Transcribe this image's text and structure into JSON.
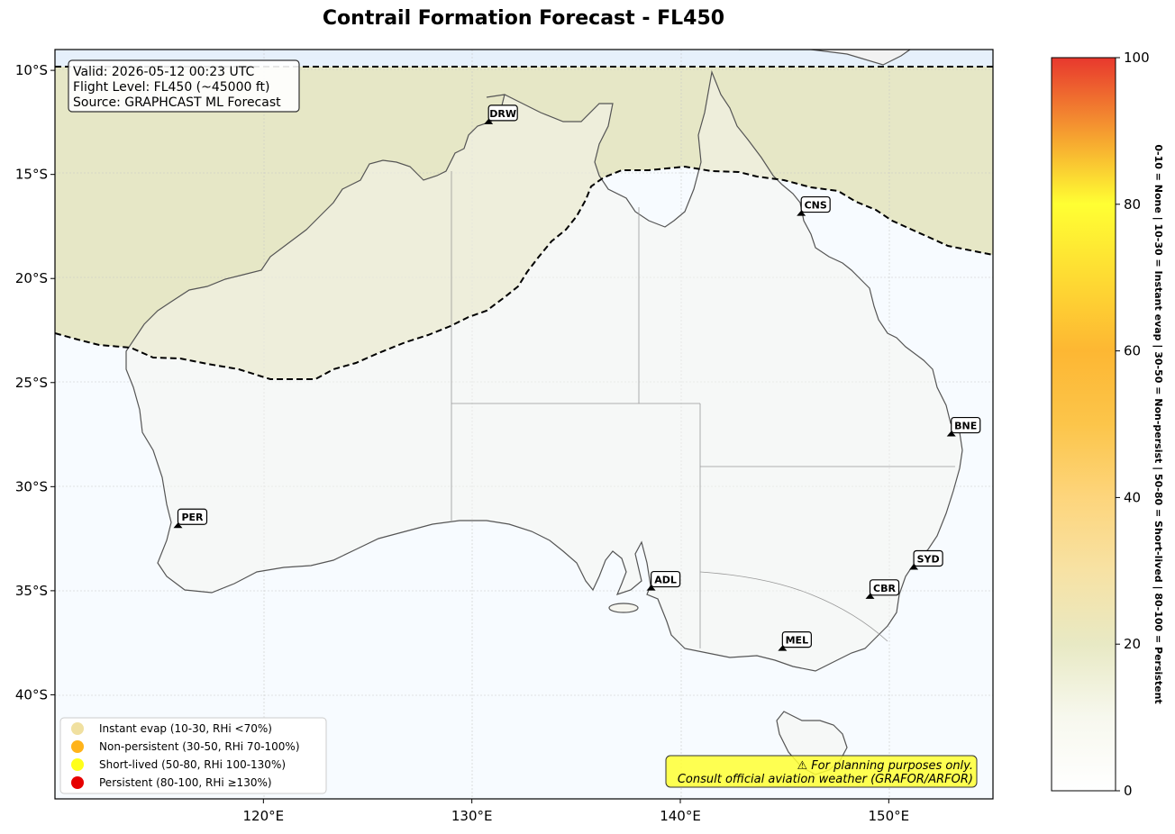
{
  "title": "Contrail Formation Forecast - FL450",
  "info": {
    "valid": "Valid: 2026-05-12 00:23 UTC",
    "flight_level": "Flight Level: FL450 (~45000 ft)",
    "source": "Source: GRAPHCAST ML Forecast"
  },
  "map": {
    "lon_range": [
      110,
      155
    ],
    "lat_range": [
      -45,
      -9
    ],
    "lon_ticks": [
      "120°E",
      "130°E",
      "140°E",
      "150°E"
    ],
    "lat_ticks": [
      "10°S",
      "15°S",
      "20°S",
      "25°S",
      "30°S",
      "35°S",
      "40°S"
    ]
  },
  "cities": [
    {
      "code": "DRW",
      "lon": 130.8,
      "lat": -12.5
    },
    {
      "code": "CNS",
      "lon": 145.8,
      "lat": -16.9
    },
    {
      "code": "BNE",
      "lon": 153.0,
      "lat": -27.5
    },
    {
      "code": "PER",
      "lon": 115.9,
      "lat": -31.9
    },
    {
      "code": "ADL",
      "lon": 138.6,
      "lat": -34.9
    },
    {
      "code": "SYD",
      "lon": 151.2,
      "lat": -33.9
    },
    {
      "code": "CBR",
      "lon": 149.1,
      "lat": -35.3
    },
    {
      "code": "MEL",
      "lon": 144.9,
      "lat": -37.8
    }
  ],
  "legend": [
    {
      "label": "Instant evap (10-30, RHi <70%)",
      "color": "#f0e0a0"
    },
    {
      "label": "Non-persistent (30-50, RHi 70-100%)",
      "color": "#ffb31a"
    },
    {
      "label": "Short-lived (50-80, RHi 100-130%)",
      "color": "#ffff1a"
    },
    {
      "label": "Persistent (80-100, RHi ≥130%)",
      "color": "#e60000"
    }
  ],
  "disclaimer": {
    "line1": "⚠ For planning purposes only.",
    "line2": "Consult official aviation weather (GRAFOR/ARFOR)"
  },
  "colorbar": {
    "ticks": [
      "0",
      "20",
      "40",
      "60",
      "80",
      "100"
    ],
    "label": "0-10 = None  |  10-30 = Instant evap  |  30-50 = Non-persist  |  50-80 = Short-lived  |  80-100 = Persistent"
  }
}
